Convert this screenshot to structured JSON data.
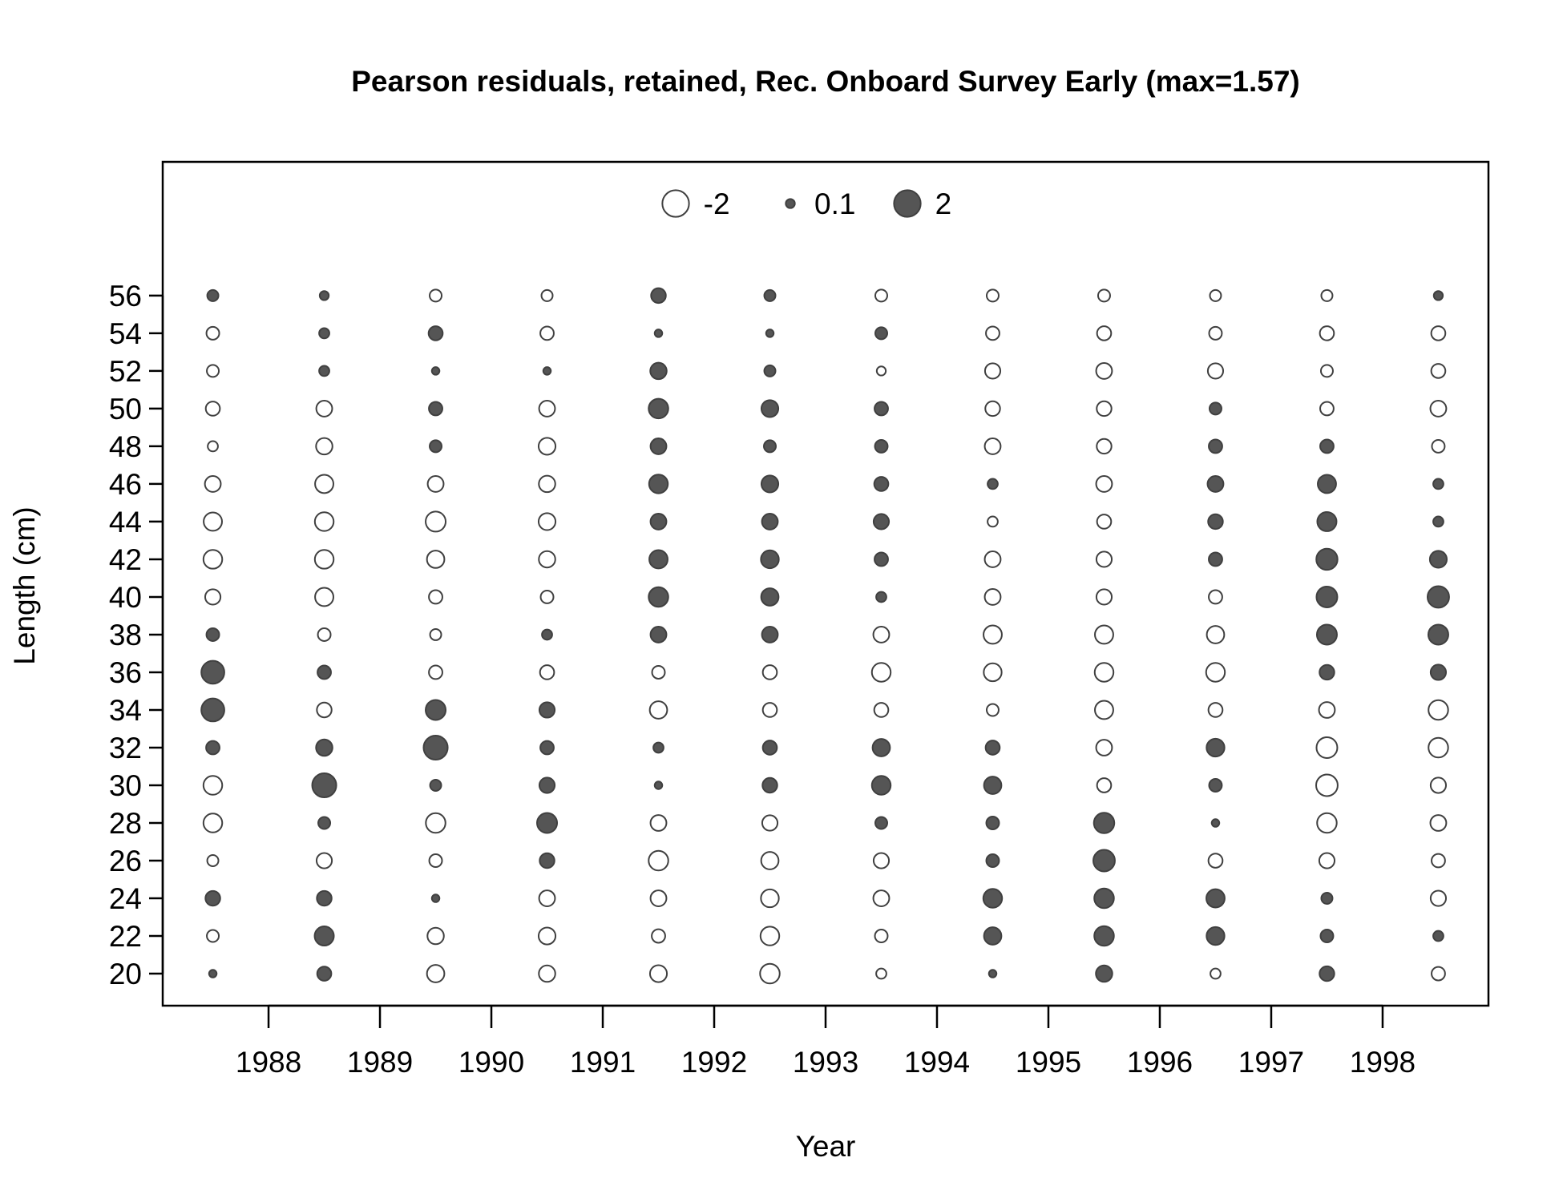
{
  "chart_data": {
    "type": "scatter",
    "subtype": "bubble",
    "title": "Pearson residuals, retained, Rec. Onboard Survey Early (max=1.57)",
    "xlabel": "Year",
    "ylabel": "Length (cm)",
    "x_ticks": [
      1988,
      1989,
      1990,
      1991,
      1992,
      1993,
      1994,
      1995,
      1996,
      1997,
      1998
    ],
    "y_ticks": [
      20,
      22,
      24,
      26,
      28,
      30,
      32,
      34,
      36,
      38,
      40,
      42,
      44,
      46,
      48,
      50,
      52,
      54,
      56
    ],
    "xlim": [
      1987.05,
      1998.95
    ],
    "ylim": [
      18.3,
      63.1
    ],
    "grid": false,
    "legend": {
      "position": "top-center",
      "entries": [
        {
          "label": "-2",
          "value": -2
        },
        {
          "label": "0.1",
          "value": 0.1
        },
        {
          "label": "2",
          "value": 2
        }
      ]
    },
    "colors": {
      "positive": "#555555",
      "negative": "#ffffff",
      "outline": "#404040"
    },
    "years": [
      1987.5,
      1988.5,
      1989.5,
      1990.5,
      1991.5,
      1992.5,
      1993.5,
      1994.5,
      1995.5,
      1996.5,
      1997.5,
      1998.5
    ],
    "lengths": [
      20,
      22,
      24,
      26,
      28,
      30,
      32,
      34,
      36,
      38,
      40,
      42,
      44,
      46,
      48,
      50,
      52,
      54,
      56
    ],
    "residuals": [
      [
        0.05,
        -0.25,
        0.45,
        -0.2,
        -0.85,
        -0.85,
        0.35,
        1.4,
        1.4,
        0.3,
        -0.5,
        -0.85,
        -0.8,
        -0.55,
        -0.15,
        -0.4,
        -0.25,
        -0.3,
        0.2
      ],
      [
        0.4,
        0.9,
        0.45,
        -0.5,
        0.25,
        1.57,
        0.6,
        -0.45,
        0.35,
        -0.3,
        -0.8,
        -0.85,
        -0.85,
        -0.8,
        -0.6,
        -0.55,
        0.15,
        0.15,
        0.1
      ],
      [
        -0.7,
        -0.6,
        0.05,
        -0.3,
        -0.95,
        0.2,
        1.57,
        1.0,
        -0.35,
        -0.2,
        -0.35,
        -0.7,
        -1.0,
        -0.55,
        0.25,
        0.35,
        0.05,
        0.4,
        -0.25
      ],
      [
        -0.6,
        -0.65,
        -0.55,
        0.45,
        1.0,
        0.5,
        0.35,
        0.5,
        -0.4,
        0.15,
        -0.3,
        -0.6,
        -0.65,
        -0.6,
        -0.65,
        -0.55,
        0.05,
        -0.35,
        -0.2
      ],
      [
        -0.65,
        -0.35,
        -0.55,
        -0.95,
        -0.55,
        0.05,
        0.15,
        -0.7,
        -0.3,
        0.55,
        0.95,
        0.8,
        0.55,
        0.85,
        0.55,
        0.95,
        0.6,
        0.05,
        0.45
      ],
      [
        -0.95,
        -0.85,
        -0.75,
        -0.7,
        -0.5,
        0.45,
        0.4,
        -0.4,
        -0.4,
        0.55,
        0.7,
        0.75,
        0.55,
        0.65,
        0.25,
        0.65,
        0.2,
        0.05,
        0.2
      ],
      [
        -0.15,
        -0.3,
        -0.55,
        -0.5,
        0.25,
        0.85,
        0.7,
        -0.4,
        -0.85,
        -0.55,
        0.15,
        0.35,
        0.5,
        0.4,
        0.3,
        0.35,
        -0.1,
        0.25,
        -0.25
      ],
      [
        0.05,
        0.7,
        0.85,
        0.3,
        0.3,
        0.7,
        0.4,
        -0.25,
        -0.75,
        -0.8,
        -0.55,
        -0.55,
        -0.15,
        0.15,
        -0.55,
        -0.45,
        -0.5,
        -0.35,
        -0.25
      ],
      [
        0.6,
        0.95,
        0.95,
        1.2,
        1.05,
        -0.4,
        -0.55,
        -0.8,
        -0.85,
        -0.8,
        -0.5,
        -0.5,
        -0.4,
        -0.55,
        -0.45,
        -0.45,
        -0.55,
        -0.4,
        -0.25
      ],
      [
        -0.15,
        0.75,
        0.8,
        -0.4,
        0.05,
        0.3,
        0.75,
        -0.4,
        -0.85,
        -0.7,
        -0.35,
        0.35,
        0.45,
        0.55,
        0.35,
        0.25,
        -0.5,
        -0.3,
        -0.2
      ],
      [
        0.45,
        0.3,
        0.2,
        -0.5,
        -0.95,
        -1.2,
        -1.1,
        -0.55,
        0.45,
        1.0,
        1.1,
        1.15,
        0.9,
        0.8,
        0.35,
        -0.35,
        -0.25,
        -0.4,
        -0.2
      ],
      [
        -0.35,
        0.15,
        -0.5,
        -0.35,
        -0.55,
        -0.5,
        -0.95,
        -0.95,
        0.5,
        1.0,
        1.2,
        0.65,
        0.15,
        0.15,
        -0.3,
        -0.55,
        -0.4,
        -0.4,
        0.1
      ]
    ]
  }
}
